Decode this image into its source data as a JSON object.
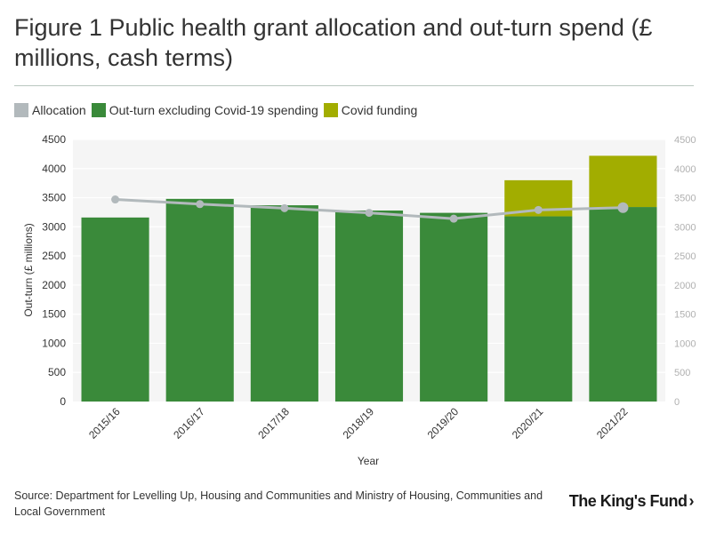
{
  "header": {
    "title": "Figure 1 Public health grant allocation and out-turn spend (£ millions, cash terms)"
  },
  "legend": [
    {
      "label": "Allocation",
      "color": "#b2b9bc"
    },
    {
      "label": "Out-turn excluding Covid-19 spending",
      "color": "#3a8a3a"
    },
    {
      "label": "Covid funding",
      "color": "#a2ad00"
    }
  ],
  "footer": {
    "source": "Source: Department for Levelling Up, Housing and Communities and Ministry of Housing, Communities and Local Government",
    "logo_main": "The King's Fund",
    "logo_chevron": "›"
  },
  "chart_data": {
    "type": "bar",
    "stacked": true,
    "categories": [
      "2015/16",
      "2016/17",
      "2017/18",
      "2018/19",
      "2019/20",
      "2020/21",
      "2021/22"
    ],
    "series": [
      {
        "name": "Out-turn excluding Covid-19 spending",
        "values": [
          3160,
          3480,
          3370,
          3280,
          3240,
          3180,
          3340
        ],
        "color": "#3a8a3a"
      },
      {
        "name": "Covid funding",
        "values": [
          0,
          0,
          0,
          0,
          0,
          620,
          880
        ],
        "color": "#a2ad00"
      }
    ],
    "line_series": {
      "name": "Allocation",
      "values": [
        3470,
        3390,
        3320,
        3240,
        3140,
        3290,
        3330
      ],
      "color": "#b2b9bc"
    },
    "xlabel": "Year",
    "ylabel": "Out-turn (£ millions)",
    "ylim": [
      0,
      4500
    ],
    "yticks": [
      0,
      500,
      1000,
      1500,
      2000,
      2500,
      3000,
      3500,
      4000,
      4500
    ],
    "ytick_labels": [
      "0",
      "500",
      "1000",
      "1500",
      "2000",
      "2500",
      "3000",
      "3500",
      "4000",
      "4500"
    ],
    "secondary_yticks": [
      0,
      500,
      1000,
      1500,
      2000,
      2500,
      3000,
      3500,
      4000,
      4500
    ],
    "secondary_ytick_labels": [
      "0",
      "500",
      "1000",
      "1500",
      "2000",
      "2500",
      "3000",
      "3500",
      "4000",
      "4500"
    ],
    "grid": true,
    "legend_position": "top-left"
  }
}
